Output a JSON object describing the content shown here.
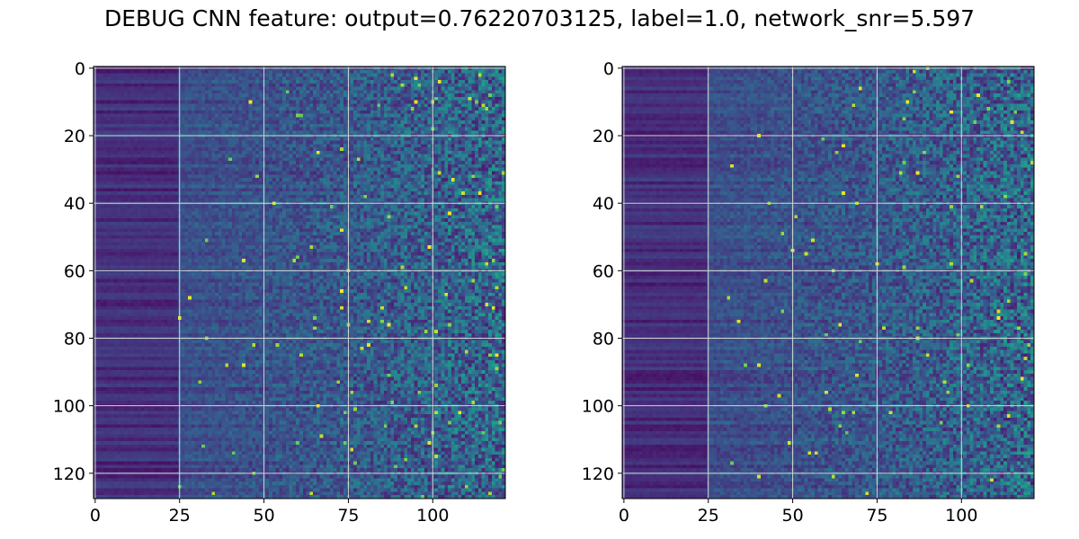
{
  "figure": {
    "title": "DEBUG CNN feature: output=0.76220703125, label=1.0, network_snr=5.597"
  },
  "chart_data": [
    {
      "type": "heatmap",
      "title": "",
      "xlabel": "",
      "ylabel": "",
      "rows": 128,
      "cols": 122,
      "xlim": [
        -0.5,
        121.5
      ],
      "ylim": [
        127.5,
        -0.5
      ],
      "xticks": [
        0,
        25,
        50,
        75,
        100
      ],
      "xtick_labels": [
        "0",
        "25",
        "50",
        "75",
        "100"
      ],
      "yticks": [
        0,
        20,
        40,
        60,
        80,
        100,
        120
      ],
      "ytick_labels": [
        "0",
        "20",
        "40",
        "60",
        "80",
        "100",
        "120"
      ],
      "grid": true,
      "colormap": "viridis",
      "colormap_colors": [
        "#440154",
        "#482878",
        "#3e4989",
        "#31688e",
        "#26828e",
        "#1f9e89",
        "#35b779",
        "#6ece58",
        "#b5de2b",
        "#fde725"
      ]
    },
    {
      "type": "heatmap",
      "title": "",
      "xlabel": "",
      "ylabel": "",
      "rows": 128,
      "cols": 122,
      "xlim": [
        -0.5,
        121.5
      ],
      "ylim": [
        127.5,
        -0.5
      ],
      "xticks": [
        0,
        25,
        50,
        75,
        100
      ],
      "xtick_labels": [
        "0",
        "25",
        "50",
        "75",
        "100"
      ],
      "yticks": [
        0,
        20,
        40,
        60,
        80,
        100,
        120
      ],
      "ytick_labels": [
        "0",
        "20",
        "40",
        "60",
        "80",
        "100",
        "120"
      ],
      "grid": true,
      "colormap": "viridis",
      "colormap_colors": [
        "#440154",
        "#482878",
        "#3e4989",
        "#31688e",
        "#26828e",
        "#1f9e89",
        "#35b779",
        "#6ece58",
        "#b5de2b",
        "#fde725"
      ]
    }
  ]
}
